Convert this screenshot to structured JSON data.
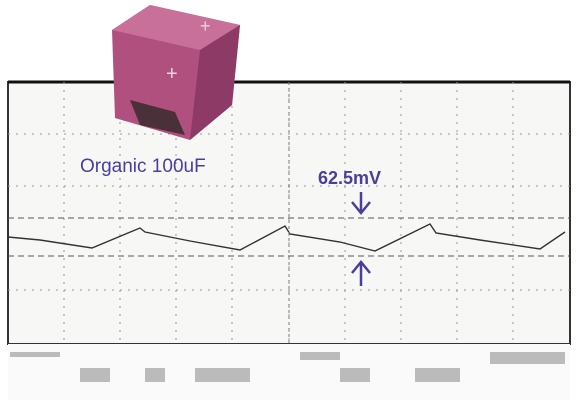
{
  "labels": {
    "capacitor": "Organic 100uF",
    "ripple": "62.5mV"
  }
}
